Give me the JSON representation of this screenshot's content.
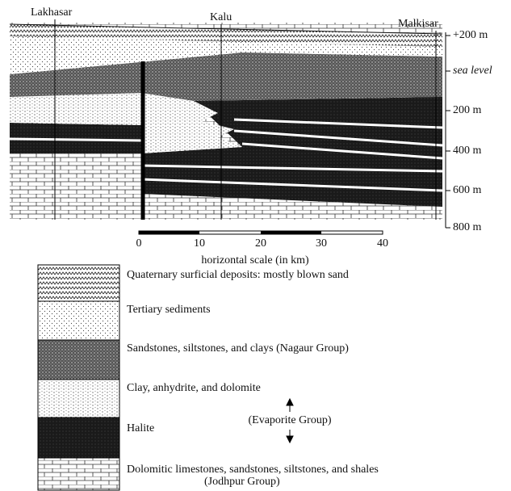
{
  "section": {
    "wells": [
      "Lakhasar",
      "Kalu",
      "Malkisar"
    ],
    "depth_labels": [
      "+200 m",
      "sea level",
      "200 m",
      "400 m",
      "600 m",
      "800 m"
    ]
  },
  "scale": {
    "ticks": [
      "0",
      "10",
      "20",
      "30",
      "40"
    ],
    "label": "horizontal scale (in km)"
  },
  "legend": {
    "items": [
      {
        "label": "Quaternary surficial deposits: mostly blown sand"
      },
      {
        "label": "Tertiary sediments"
      },
      {
        "label": "Sandstones, siltstones, and clays  (Nagaur Group)"
      },
      {
        "label": "Clay, anhydrite, and dolomite"
      },
      {
        "label": "Halite"
      },
      {
        "label": "Dolomitic limestones, sandstones, siltstones, and shales",
        "sublabel": "(Jodhpur Group)"
      }
    ],
    "group_label": "(Evaporite Group)"
  }
}
